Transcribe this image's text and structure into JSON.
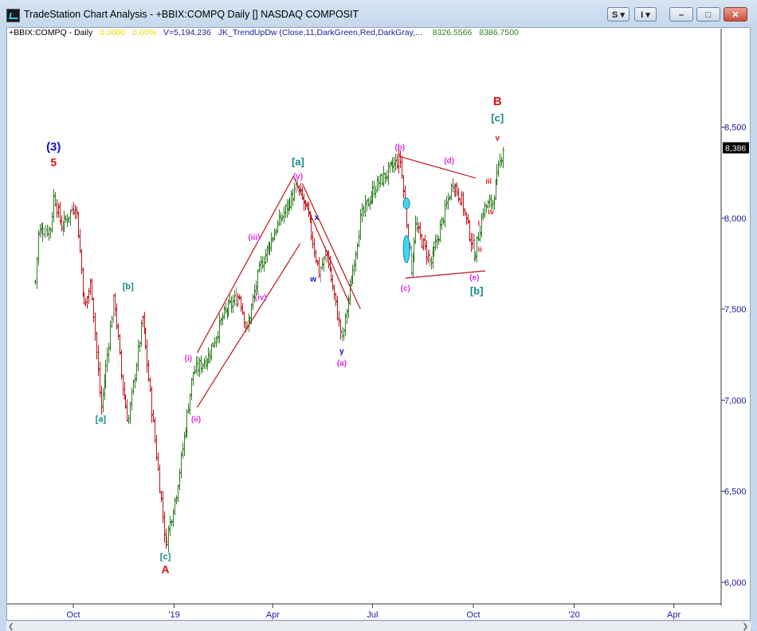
{
  "window": {
    "title": "TradeStation Chart Analysis - +BBIX:COMPQ Daily [] NASDAQ COMPOSIT",
    "btn_s": "S ▾",
    "btn_i": "I ▾",
    "btn_min": "–",
    "btn_max": "□",
    "btn_close": "✕"
  },
  "infoline": {
    "symbol": "+BBIX:COMPQ - Daily",
    "change": "0.0000",
    "change_pct": "0.00%",
    "volume": "V=5,194,236",
    "indicator": "JK_TrendUpDw (Close,11,DarkGreen,Red,DarkGray,...",
    "val1": "8326.5566",
    "val2": "8386.7500"
  },
  "colors": {
    "up_bar": "#2e7d1f",
    "down_bar": "#c0141a",
    "neutral_bar": "#8a8a8a",
    "channel": "#c0141a",
    "axis_text": "#1a1aa0",
    "label_teal": "#138a8a",
    "label_magenta": "#d930d9",
    "label_red": "#e01010",
    "label_blue": "#1010c0",
    "ellipse": "#40d8f0"
  },
  "chart_data": {
    "type": "ohlc-bar",
    "x_tick_labels": [
      "Oct",
      "'19",
      "Apr",
      "Jul",
      "Oct",
      "'20",
      "Apr"
    ],
    "y_tick_labels": [
      "8,500",
      "8,000",
      "7,500",
      "7,000",
      "6,500",
      "6,000"
    ],
    "y_ticks": [
      8500,
      8000,
      7500,
      7000,
      6500,
      6000
    ],
    "ylim": [
      5900,
      9050
    ],
    "last_price_label": "8,386",
    "last_price": 8386,
    "price_path": [
      {
        "t": "2018-08-27",
        "v": 7650
      },
      {
        "t": "2018-08-30",
        "v": 7930
      },
      {
        "t": "2018-09-10",
        "v": 7940
      },
      {
        "t": "2018-09-13",
        "v": 8130
      },
      {
        "t": "2018-09-20",
        "v": 7950
      },
      {
        "t": "2018-09-28",
        "v": 8030
      },
      {
        "t": "2018-10-03",
        "v": 8080
      },
      {
        "t": "2018-10-11",
        "v": 7500
      },
      {
        "t": "2018-10-17",
        "v": 7650
      },
      {
        "t": "2018-10-26",
        "v": 6950
      },
      {
        "t": "2018-11-07",
        "v": 7570
      },
      {
        "t": "2018-11-14",
        "v": 7100
      },
      {
        "t": "2018-11-20",
        "v": 6880
      },
      {
        "t": "2018-12-03",
        "v": 7450
      },
      {
        "t": "2018-12-24",
        "v": 6200
      },
      {
        "t": "2019-01-03",
        "v": 6500
      },
      {
        "t": "2019-01-18",
        "v": 7150
      },
      {
        "t": "2019-02-01",
        "v": 7240
      },
      {
        "t": "2019-02-15",
        "v": 7470
      },
      {
        "t": "2019-03-01",
        "v": 7580
      },
      {
        "t": "2019-03-08",
        "v": 7380
      },
      {
        "t": "2019-03-20",
        "v": 7730
      },
      {
        "t": "2019-04-05",
        "v": 7960
      },
      {
        "t": "2019-04-23",
        "v": 8170
      },
      {
        "t": "2019-05-02",
        "v": 8040
      },
      {
        "t": "2019-05-13",
        "v": 7700
      },
      {
        "t": "2019-05-20",
        "v": 7810
      },
      {
        "t": "2019-06-03",
        "v": 7330
      },
      {
        "t": "2019-06-20",
        "v": 8000
      },
      {
        "t": "2019-07-03",
        "v": 8170
      },
      {
        "t": "2019-07-26",
        "v": 8330
      },
      {
        "t": "2019-08-05",
        "v": 7720
      },
      {
        "t": "2019-08-09",
        "v": 7960
      },
      {
        "t": "2019-08-23",
        "v": 7750
      },
      {
        "t": "2019-09-12",
        "v": 8200
      },
      {
        "t": "2019-09-20",
        "v": 8100
      },
      {
        "t": "2019-10-02",
        "v": 7790
      },
      {
        "t": "2019-10-10",
        "v": 8050
      },
      {
        "t": "2019-10-18",
        "v": 8090
      },
      {
        "t": "2019-10-28",
        "v": 8390
      }
    ],
    "trendlines": [
      {
        "t1": "2019-01-22",
        "v1": 7260,
        "t2": "2019-04-20",
        "v2": 8230
      },
      {
        "t1": "2019-01-22",
        "v1": 6960,
        "t2": "2019-04-26",
        "v2": 7860
      },
      {
        "t1": "2019-04-20",
        "v1": 8230,
        "t2": "2019-06-10",
        "v2": 7530
      },
      {
        "t1": "2019-04-28",
        "v1": 8190,
        "t2": "2019-06-20",
        "v2": 7500
      },
      {
        "t1": "2019-07-25",
        "v1": 8340,
        "t2": "2019-10-03",
        "v2": 8220
      },
      {
        "t1": "2019-07-31",
        "v1": 7670,
        "t2": "2019-10-12",
        "v2": 7710
      }
    ],
    "ellipses": [
      {
        "t": "2019-08-01",
        "v": 8080
      },
      {
        "t": "2019-08-01",
        "v": 7830
      }
    ],
    "annotations": [
      {
        "text": "(3)",
        "color": "label_blue",
        "t": "2018-09-13",
        "v": 8370,
        "size": 15
      },
      {
        "text": "5",
        "color": "label_red",
        "t": "2018-09-13",
        "v": 8285,
        "size": 14
      },
      {
        "text": "[a]",
        "color": "label_teal",
        "t": "2018-10-26",
        "v": 6880,
        "size": 11
      },
      {
        "text": "[b]",
        "color": "label_teal",
        "t": "2018-11-20",
        "v": 7610,
        "size": 11
      },
      {
        "text": "[c]",
        "color": "label_teal",
        "t": "2018-12-24",
        "v": 6125,
        "size": 11
      },
      {
        "text": "A",
        "color": "label_red",
        "t": "2018-12-24",
        "v": 6050,
        "size": 14
      },
      {
        "text": "(i)",
        "color": "label_magenta",
        "t": "2019-01-14",
        "v": 7215,
        "size": 10
      },
      {
        "text": "(ii)",
        "color": "label_magenta",
        "t": "2019-01-21",
        "v": 6880,
        "size": 10
      },
      {
        "text": "(iii)",
        "color": "label_magenta",
        "t": "2019-03-15",
        "v": 7880,
        "size": 10
      },
      {
        "text": "(iv)",
        "color": "label_magenta",
        "t": "2019-03-21",
        "v": 7550,
        "size": 10
      },
      {
        "text": "[a]",
        "color": "label_teal",
        "t": "2019-04-24",
        "v": 8290,
        "size": 13
      },
      {
        "text": "(v)",
        "color": "label_magenta",
        "t": "2019-04-24",
        "v": 8215,
        "size": 10
      },
      {
        "text": "x",
        "color": "label_blue",
        "t": "2019-05-11",
        "v": 7990,
        "size": 10
      },
      {
        "text": "w",
        "color": "label_blue",
        "t": "2019-05-08",
        "v": 7650,
        "size": 10
      },
      {
        "text": "y",
        "color": "label_blue",
        "t": "2019-06-03",
        "v": 7255,
        "size": 10
      },
      {
        "text": "(a)",
        "color": "label_magenta",
        "t": "2019-06-03",
        "v": 7190,
        "size": 10
      },
      {
        "text": "(b)",
        "color": "label_magenta",
        "t": "2019-07-26",
        "v": 8375,
        "size": 10
      },
      {
        "text": "(c)",
        "color": "label_magenta",
        "t": "2019-07-31",
        "v": 7600,
        "size": 10
      },
      {
        "text": "(d)",
        "color": "label_magenta",
        "t": "2019-09-09",
        "v": 8300,
        "size": 10
      },
      {
        "text": "(e)",
        "color": "label_magenta",
        "t": "2019-10-02",
        "v": 7660,
        "size": 10
      },
      {
        "text": "[b]",
        "color": "label_teal",
        "t": "2019-10-04",
        "v": 7580,
        "size": 13
      },
      {
        "text": "B",
        "color": "label_red",
        "t": "2019-10-23",
        "v": 8620,
        "size": 15
      },
      {
        "text": "[c]",
        "color": "label_teal",
        "t": "2019-10-23",
        "v": 8530,
        "size": 13
      },
      {
        "text": "v",
        "color": "label_red",
        "t": "2019-10-23",
        "v": 8425,
        "size": 10
      },
      {
        "text": "iii",
        "color": "label_red",
        "t": "2019-10-15",
        "v": 8190,
        "size": 9
      },
      {
        "text": "iv",
        "color": "label_red",
        "t": "2019-10-17",
        "v": 8020,
        "size": 9
      },
      {
        "text": "ii",
        "color": "label_red",
        "t": "2019-10-07",
        "v": 7815,
        "size": 9
      },
      {
        "text": "i",
        "color": "label_red",
        "t": "2019-10-06",
        "v": 7960,
        "size": 9
      }
    ]
  }
}
